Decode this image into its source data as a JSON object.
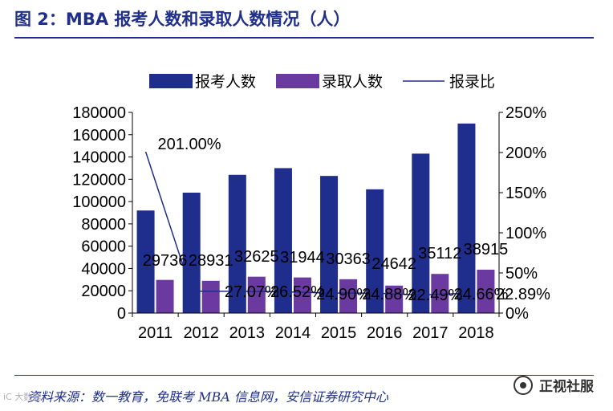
{
  "header": {
    "title": "图 2：MBA 报考人数和录取人数情况（人）"
  },
  "footer": {
    "source": "资料来源：数一教育，免联考 MBA 信息网，安信证券研究中心",
    "watermark": "正视社服",
    "corner_mark": "iC 大数据"
  },
  "colors": {
    "applicants": "#1f2d8c",
    "admitted": "#6a3aa0",
    "ratio": "#1f2d8c",
    "title": "#1f2f8a"
  },
  "chart_data": {
    "type": "bar",
    "title": "MBA 报考人数和录取人数情况（人）",
    "categories": [
      "2011",
      "2012",
      "2013",
      "2014",
      "2015",
      "2016",
      "2017",
      "2018"
    ],
    "series": [
      {
        "name": "报考人数",
        "type": "bar",
        "axis": "left",
        "values": [
          92000,
          108000,
          124000,
          130000,
          123000,
          111000,
          143000,
          170000
        ]
      },
      {
        "name": "录取人数",
        "type": "bar",
        "axis": "left",
        "values": [
          29736,
          28931,
          32625,
          31944,
          30363,
          24642,
          35112,
          38915
        ],
        "labels": [
          "29736",
          "28931",
          "32625",
          "31944",
          "30363",
          "24642",
          "35112",
          "38915"
        ]
      },
      {
        "name": "报录比",
        "type": "line",
        "axis": "right",
        "values": [
          201.0,
          27.07,
          27.07,
          26.52,
          24.9,
          24.88,
          22.49,
          24.66
        ],
        "labels": [
          "201.00%",
          "",
          "27.07%",
          "26.52%",
          "24.90%",
          "24.88%",
          "22.49%",
          "24.66%"
        ],
        "extra_label": "22.89%"
      }
    ],
    "left_axis": {
      "ylim": [
        0,
        180000
      ],
      "ticks": [
        0,
        20000,
        40000,
        60000,
        80000,
        100000,
        120000,
        140000,
        160000,
        180000
      ],
      "tick_labels": [
        "0",
        "20000",
        "40000",
        "60000",
        "80000",
        "100000",
        "120000",
        "140000",
        "160000",
        "180000"
      ]
    },
    "right_axis": {
      "ylim": [
        0,
        250
      ],
      "ticks": [
        0,
        50,
        100,
        150,
        200,
        250
      ],
      "tick_labels": [
        "0%",
        "50%",
        "100%",
        "150%",
        "200%",
        "250%"
      ]
    },
    "legend": {
      "position": "top",
      "entries": [
        "报考人数",
        "录取人数",
        "报录比"
      ]
    },
    "grid": false
  }
}
